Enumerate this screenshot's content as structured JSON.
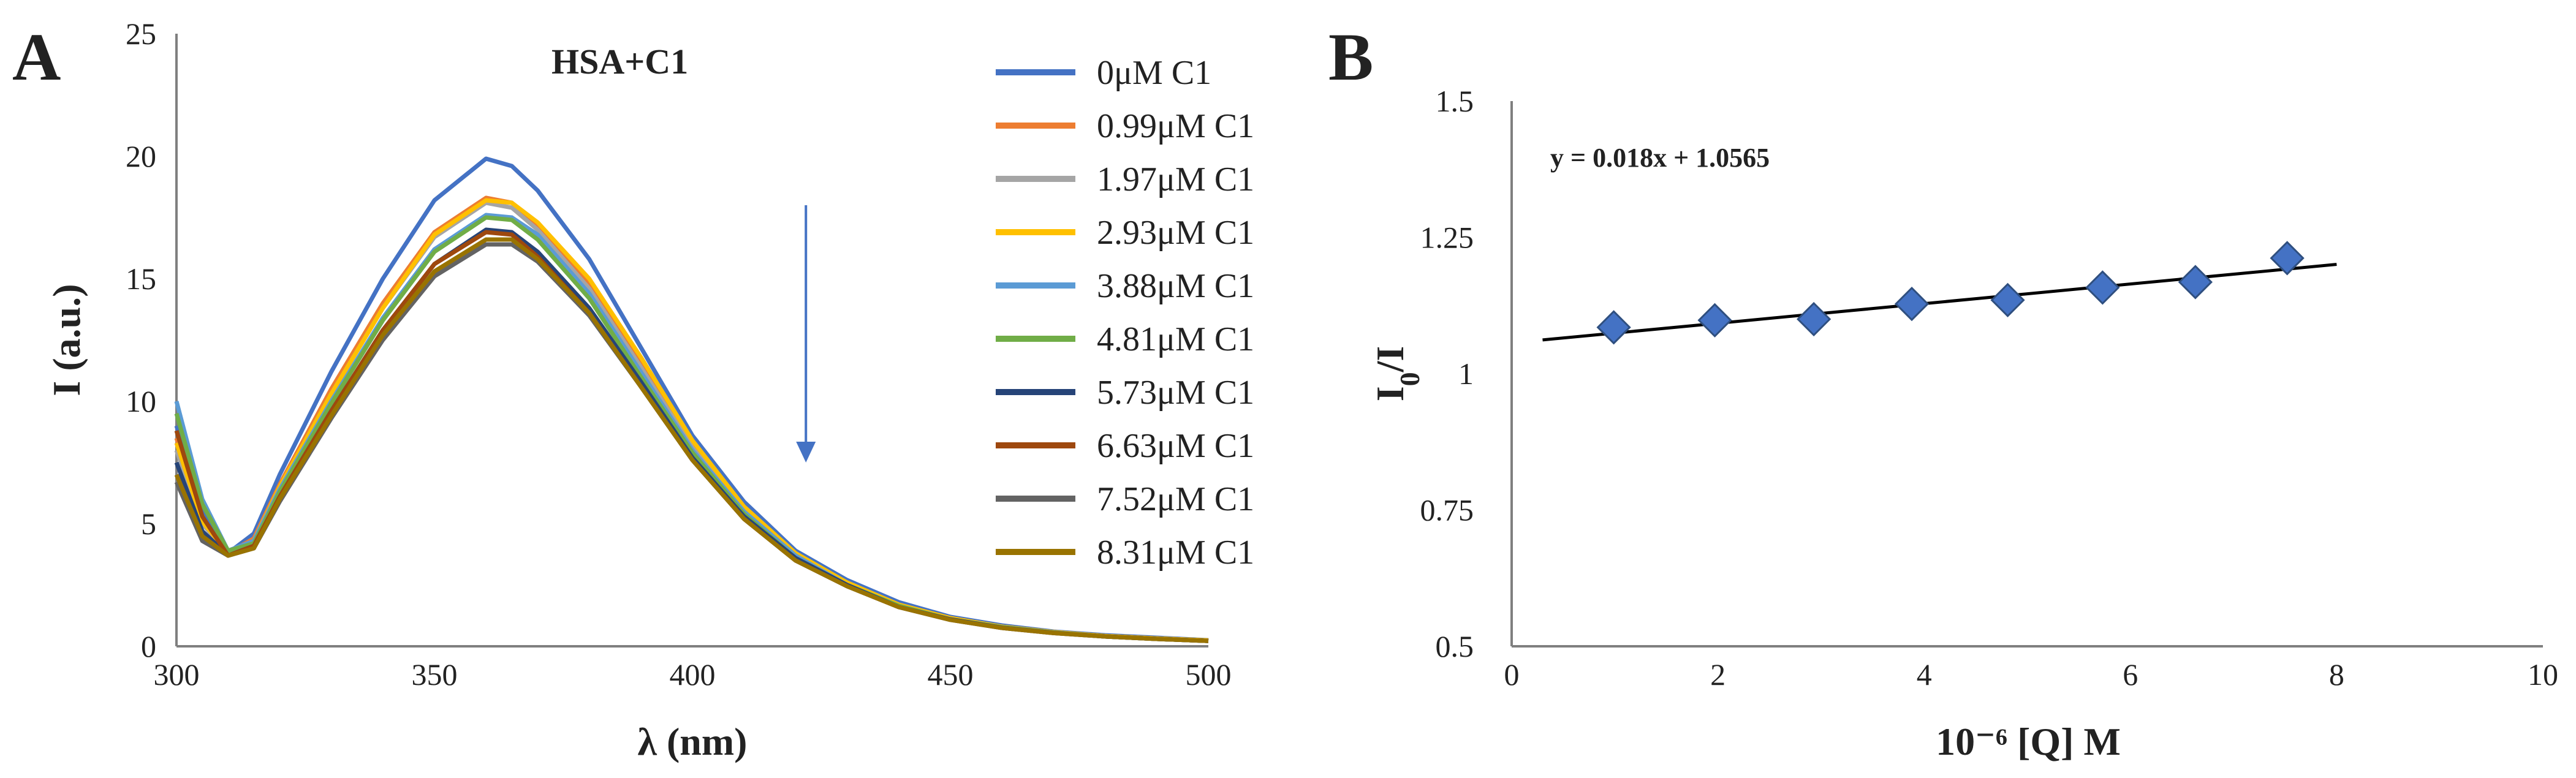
{
  "chart_data": [
    {
      "panel": "A",
      "type": "line",
      "title": "",
      "annotation": "HSA+C1",
      "xlabel": "λ (nm)",
      "ylabel": "I (a.u.)",
      "xlim": [
        300,
        500
      ],
      "ylim": [
        0,
        25
      ],
      "xticks": [
        "300",
        "350",
        "400",
        "450",
        "500"
      ],
      "yticks": [
        "0",
        "5",
        "10",
        "15",
        "20",
        "25"
      ],
      "x": [
        300,
        305,
        310,
        315,
        320,
        330,
        340,
        350,
        360,
        365,
        370,
        380,
        390,
        400,
        410,
        420,
        430,
        440,
        450,
        460,
        470,
        480,
        490,
        500
      ],
      "series": [
        {
          "name": "0μM C1",
          "color": "#4472C4",
          "values": [
            9.0,
            5.6,
            3.8,
            4.6,
            7.0,
            11.2,
            15.0,
            18.2,
            19.9,
            19.6,
            18.6,
            15.8,
            12.2,
            8.6,
            5.9,
            3.9,
            2.7,
            1.8,
            1.2,
            0.85,
            0.6,
            0.45,
            0.35,
            0.25
          ]
        },
        {
          "name": "0.99μM C1",
          "color": "#ED7D31",
          "values": [
            8.5,
            5.2,
            3.8,
            4.4,
            6.6,
            10.5,
            14.0,
            16.9,
            18.3,
            18.1,
            17.2,
            14.8,
            11.5,
            8.2,
            5.6,
            3.7,
            2.6,
            1.7,
            1.15,
            0.8,
            0.58,
            0.42,
            0.32,
            0.24
          ]
        },
        {
          "name": "1.97μM C1",
          "color": "#A5A5A5",
          "values": [
            8.0,
            5.0,
            3.8,
            4.3,
            6.5,
            10.3,
            13.8,
            16.7,
            18.1,
            17.9,
            17.0,
            14.6,
            11.4,
            8.1,
            5.5,
            3.7,
            2.6,
            1.7,
            1.15,
            0.8,
            0.58,
            0.42,
            0.32,
            0.24
          ]
        },
        {
          "name": "2.93μM C1",
          "color": "#FFC000",
          "values": [
            8.3,
            5.1,
            3.8,
            4.3,
            6.5,
            10.3,
            13.8,
            16.8,
            18.2,
            18.1,
            17.3,
            15.0,
            11.8,
            8.4,
            5.7,
            3.8,
            2.6,
            1.7,
            1.15,
            0.8,
            0.58,
            0.42,
            0.32,
            0.24
          ]
        },
        {
          "name": "3.88μM C1",
          "color": "#5B9BD5",
          "values": [
            10.0,
            6.0,
            3.9,
            4.3,
            6.4,
            10.0,
            13.4,
            16.2,
            17.6,
            17.5,
            16.8,
            14.4,
            11.2,
            8.0,
            5.5,
            3.7,
            2.5,
            1.65,
            1.1,
            0.78,
            0.56,
            0.4,
            0.3,
            0.22
          ]
        },
        {
          "name": "4.81μM C1",
          "color": "#70AD47",
          "values": [
            9.5,
            5.8,
            3.9,
            4.2,
            6.3,
            9.9,
            13.3,
            16.1,
            17.5,
            17.4,
            16.6,
            14.2,
            11.0,
            7.9,
            5.4,
            3.6,
            2.5,
            1.65,
            1.1,
            0.78,
            0.56,
            0.4,
            0.3,
            0.22
          ]
        },
        {
          "name": "5.73μM C1",
          "color": "#264478",
          "values": [
            7.5,
            4.7,
            3.7,
            4.1,
            6.1,
            9.6,
            12.9,
            15.6,
            17.0,
            16.9,
            16.1,
            13.8,
            10.8,
            7.7,
            5.3,
            3.6,
            2.5,
            1.6,
            1.1,
            0.76,
            0.55,
            0.4,
            0.3,
            0.22
          ]
        },
        {
          "name": "6.63μM C1",
          "color": "#9E480E",
          "values": [
            8.8,
            5.3,
            3.7,
            4.1,
            6.1,
            9.6,
            12.9,
            15.6,
            16.9,
            16.8,
            15.9,
            13.6,
            10.6,
            7.6,
            5.2,
            3.5,
            2.45,
            1.6,
            1.08,
            0.75,
            0.54,
            0.4,
            0.3,
            0.22
          ]
        },
        {
          "name": "7.52μM C1",
          "color": "#636363",
          "values": [
            6.7,
            4.3,
            3.7,
            4.0,
            5.9,
            9.3,
            12.5,
            15.1,
            16.4,
            16.4,
            15.7,
            13.5,
            10.6,
            7.6,
            5.2,
            3.5,
            2.45,
            1.6,
            1.08,
            0.75,
            0.54,
            0.4,
            0.3,
            0.22
          ]
        },
        {
          "name": "8.31μM C1",
          "color": "#997300",
          "values": [
            7.0,
            4.5,
            3.7,
            4.0,
            6.0,
            9.4,
            12.7,
            15.3,
            16.6,
            16.6,
            15.8,
            13.6,
            10.6,
            7.6,
            5.2,
            3.5,
            2.45,
            1.6,
            1.08,
            0.75,
            0.54,
            0.4,
            0.3,
            0.22
          ]
        }
      ],
      "arrow": {
        "x": 422,
        "y_from": 18,
        "y_to": 7.5,
        "color": "#4472C4"
      }
    },
    {
      "panel": "B",
      "type": "scatter",
      "title": "",
      "xlabel": "10⁻⁶ [Q] M",
      "ylabel_main": "I",
      "ylabel_sub": "0",
      "ylabel_tail": "/I",
      "xlim": [
        0,
        10
      ],
      "ylim": [
        0.5,
        1.5
      ],
      "xticks": [
        "0",
        "2",
        "4",
        "6",
        "8",
        "10"
      ],
      "yticks": [
        "0.5",
        "0.75",
        "1",
        "1.25",
        "1.5"
      ],
      "marker_color": "#4472C4",
      "x": [
        0.99,
        1.97,
        2.93,
        3.88,
        4.81,
        5.73,
        6.63,
        7.52
      ],
      "y": [
        1.085,
        1.098,
        1.1,
        1.128,
        1.135,
        1.158,
        1.168,
        1.212
      ],
      "trendline": {
        "slope": 0.018,
        "intercept": 1.0565,
        "x_range": [
          0.3,
          8.0
        ],
        "color": "#000000"
      },
      "equation": "y = 0.018x + 1.0565"
    }
  ]
}
